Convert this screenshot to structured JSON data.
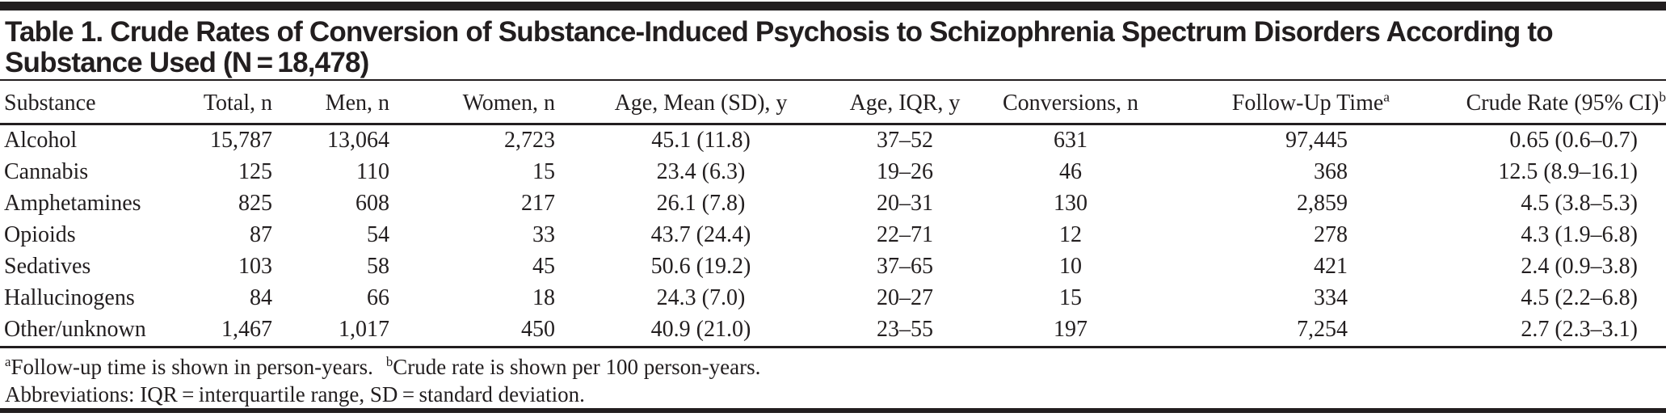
{
  "table": {
    "title_lines": [
      "Table 1. Crude Rates of Conversion of Substance-Induced Psychosis to Schizophrenia Spectrum Disorders According to",
      "Substance Used (N = 18,478)"
    ],
    "columns": [
      {
        "label": "Substance"
      },
      {
        "label": "Total, n"
      },
      {
        "label": "Men, n"
      },
      {
        "label": "Women, n"
      },
      {
        "label": "Age, Mean (SD), y"
      },
      {
        "label": "Age, IQR, y"
      },
      {
        "label": "Conversions, n"
      },
      {
        "label": "Follow-Up Time",
        "sup": "a"
      },
      {
        "label": "Crude Rate (95% CI)",
        "sup": "b"
      }
    ],
    "rows": [
      [
        "Alcohol",
        "15,787",
        "13,064",
        "2,723",
        "45.1 (11.8)",
        "37–52",
        "631",
        "97,445",
        "0.65 (0.6–0.7)"
      ],
      [
        "Cannabis",
        "125",
        "110",
        "15",
        "23.4 (6.3)",
        "19–26",
        "46",
        "368",
        "12.5 (8.9–16.1)"
      ],
      [
        "Amphetamines",
        "825",
        "608",
        "217",
        "26.1 (7.8)",
        "20–31",
        "130",
        "2,859",
        "4.5 (3.8–5.3)"
      ],
      [
        "Opioids",
        "87",
        "54",
        "33",
        "43.7 (24.4)",
        "22–71",
        "12",
        "278",
        "4.3 (1.9–6.8)"
      ],
      [
        "Sedatives",
        "103",
        "58",
        "45",
        "50.6 (19.2)",
        "37–65",
        "10",
        "421",
        "2.4 (0.9–3.8)"
      ],
      [
        "Hallucinogens",
        "84",
        "66",
        "18",
        "24.3 (7.0)",
        "20–27",
        "15",
        "334",
        "4.5 (2.2–6.8)"
      ],
      [
        "Other/unknown",
        "1,467",
        "1,017",
        "450",
        "40.9 (21.0)",
        "23–55",
        "197",
        "7,254",
        "2.7 (2.3–3.1)"
      ]
    ],
    "footnotes": [
      {
        "sup": "a",
        "text": "Follow-up time is shown in person-years."
      },
      {
        "sup": "b",
        "text": "Crude rate is shown per 100 person-years."
      }
    ],
    "abbreviations": "Abbreviations: IQR = interquartile range, SD = standard deviation.",
    "colors": {
      "ink": "#221e1f",
      "background": "#ffffff"
    }
  }
}
